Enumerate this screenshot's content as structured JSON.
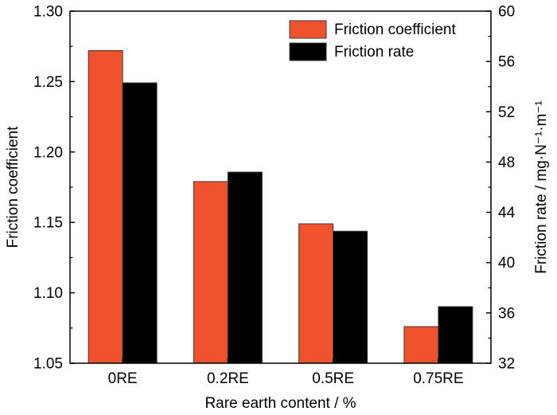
{
  "chart_data": {
    "type": "bar",
    "categories": [
      "0RE",
      "0.2RE",
      "0.5RE",
      "0.75RE"
    ],
    "series": [
      {
        "name": "Friction coefficient",
        "axis": "left",
        "color": "#f0522d",
        "values": [
          1.272,
          1.179,
          1.149,
          1.076
        ]
      },
      {
        "name": "Friction rate",
        "axis": "right",
        "color": "#000000",
        "values": [
          54.3,
          47.2,
          42.5,
          36.5
        ]
      }
    ],
    "xlabel": "Rare earth content / %",
    "ylabel": "Friction coefficient",
    "y2label": "Friction rate / mg·N⁻¹·m⁻¹",
    "ylim": [
      1.05,
      1.3
    ],
    "y2lim": [
      32,
      60
    ],
    "yticks": [
      "1.05",
      "1.10",
      "1.15",
      "1.20",
      "1.25",
      "1.30"
    ],
    "y2ticks": [
      "32",
      "36",
      "40",
      "44",
      "48",
      "52",
      "56",
      "60"
    ],
    "legend_position": "top-right",
    "grid": false
  }
}
